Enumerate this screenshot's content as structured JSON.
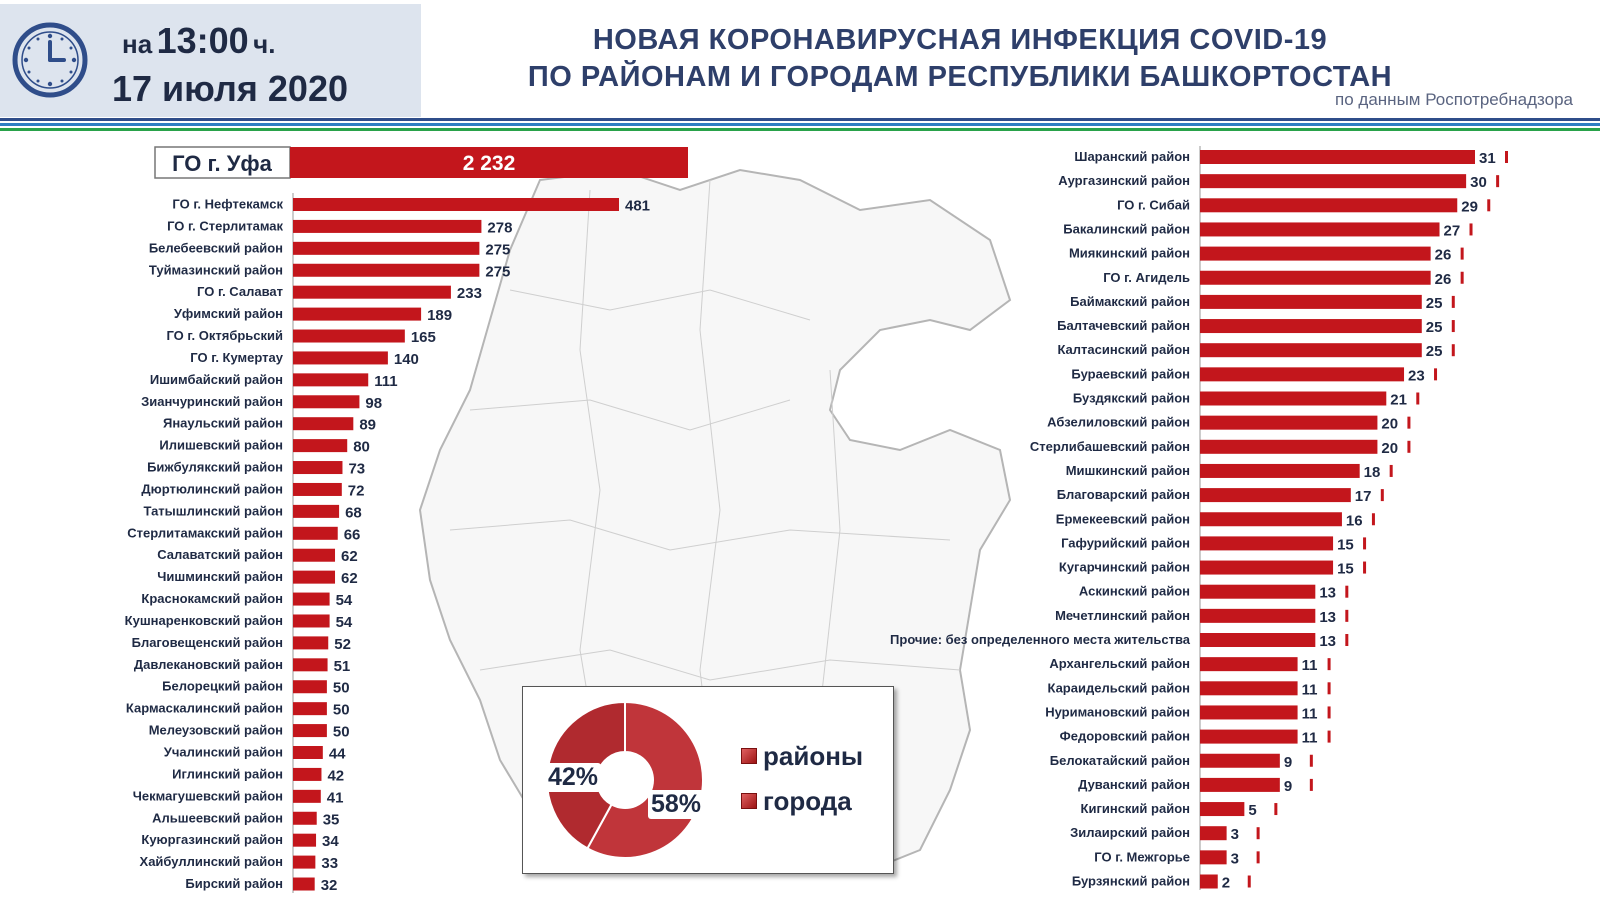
{
  "header": {
    "time_prefix": "на",
    "time": "13:00",
    "time_suffix": "ч.",
    "date": "17 июля 2020",
    "title_line1": "НОВАЯ КОРОНАВИРУСНАЯ ИНФЕКЦИЯ COVID-19",
    "title_line2": "ПО РАЙОНАМ И ГОРОДАМ РЕСПУБЛИКИ БАШКОРТОСТАН",
    "source": "по данным Роспотребнадзора"
  },
  "colors": {
    "bar": "#c3161c",
    "title": "#2e3f6a",
    "stripe_blue": "#2e7fc2",
    "stripe_green": "#29a24a"
  },
  "chart_data": [
    {
      "type": "bar",
      "orientation": "horizontal",
      "top": {
        "category": "ГО г. Уфа",
        "value": 2232,
        "label": "2 232"
      },
      "categories": [
        "ГО г. Нефтекамск",
        "ГО  г. Стерлитамак",
        "Белебеевский район",
        "Туймазинский район",
        "ГО г. Салават",
        "Уфимский район",
        "ГО г. Октябрьский",
        "ГО г. Кумертау",
        "Ишимбайский район",
        "Зианчуринский район",
        "Янаульский район",
        "Илишевский район",
        "Бижбулякский район",
        "Дюртюлинский район",
        "Татышлинский район",
        "Стерлитамакский район",
        "Салаватский район",
        "Чишминский район",
        "Краснокамский район",
        "Кушнаренковский район",
        "Благовещенский район",
        "Давлекановский район",
        "Белорецкий район",
        "Кармаскалинский район",
        "Мелеузовский район",
        "Учалинский район",
        "Иглинский район",
        "Чекмагушевский район",
        "Альшеевский район",
        "Куюргазинский район",
        "Хайбуллинский район",
        "Бирский район"
      ],
      "values": [
        481,
        278,
        275,
        275,
        233,
        189,
        165,
        140,
        111,
        98,
        89,
        80,
        73,
        72,
        68,
        66,
        62,
        62,
        54,
        54,
        52,
        51,
        50,
        50,
        50,
        44,
        42,
        41,
        35,
        34,
        33,
        32
      ]
    },
    {
      "type": "bar",
      "orientation": "horizontal",
      "categories": [
        "Шаранский район",
        "Аургазинский район",
        "ГО г. Сибай",
        "Бакалинский район",
        "Миякинский район",
        "ГО г. Агидель",
        "Баймакский район",
        "Балтачевский район",
        "Калтасинский район",
        "Бураевский район",
        "Буздякский район",
        "Абзелиловский район",
        "Стерлибашевский район",
        "Мишкинский район",
        "Благоварский район",
        "Ермекеевский район",
        "Гафурийский район",
        "Кугарчинский район",
        "Аскинский район",
        "Мечетлинский район",
        "Прочие: без определенного места жительства",
        "Архангельский район",
        "Караидельский район",
        "Нуримановский район",
        "Федоровский район",
        "Белокатайский район",
        "Дуванский район",
        "Кигинский район",
        "Зилаирский район",
        "ГО г. Межгорье",
        "Бурзянский район"
      ],
      "values": [
        31,
        30,
        29,
        27,
        26,
        26,
        25,
        25,
        25,
        23,
        21,
        20,
        20,
        18,
        17,
        16,
        15,
        15,
        13,
        13,
        13,
        11,
        11,
        11,
        11,
        9,
        9,
        5,
        3,
        3,
        2
      ]
    },
    {
      "type": "pie",
      "labels": [
        "районы",
        "города"
      ],
      "values": [
        58,
        42
      ],
      "value_labels": [
        "58%",
        "42%"
      ]
    }
  ]
}
